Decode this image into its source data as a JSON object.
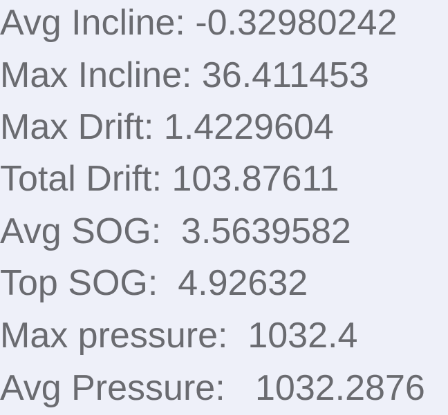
{
  "stats": [
    {
      "text": "Avg Incline: -0.32980242"
    },
    {
      "text": "Max Incline: 36.411453"
    },
    {
      "text": "Max Drift: 1.4229604"
    },
    {
      "text": "Total Drift: 103.87611"
    },
    {
      "text": "Avg SOG:  3.5639582"
    },
    {
      "text": "Top SOG:  4.92632"
    },
    {
      "text": "Max pressure:  1032.4"
    },
    {
      "text": "Avg Pressure:   1032.2876"
    }
  ]
}
